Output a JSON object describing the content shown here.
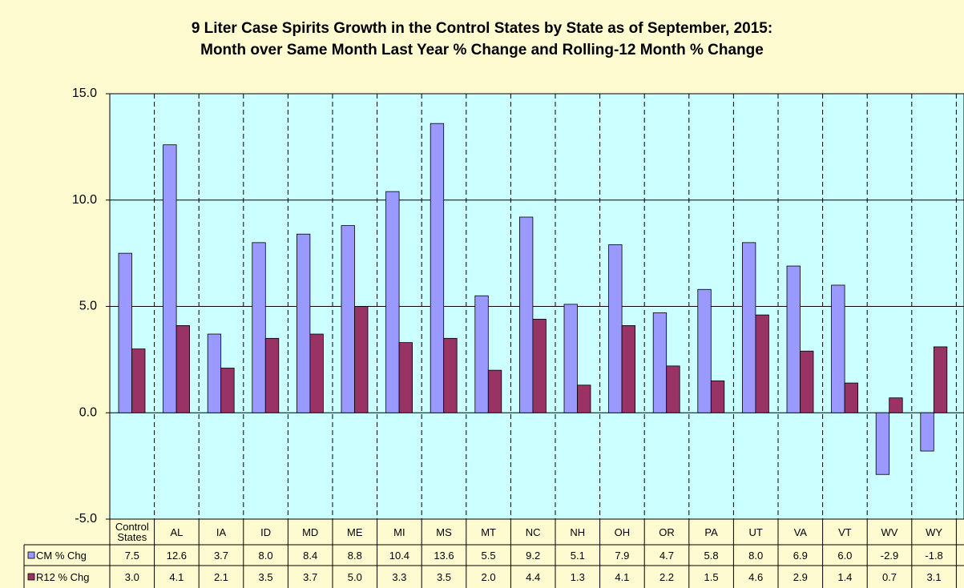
{
  "chart_data": {
    "type": "bar",
    "title": "9 Liter Case Spirits Growth in the Control States by State as of September, 2015:",
    "subtitle": "Month over Same Month Last Year % Change and Rolling-12 Month % Change",
    "categories": [
      "Control States",
      "AL",
      "IA",
      "ID",
      "MD",
      "ME",
      "MI",
      "MS",
      "MT",
      "NC",
      "NH",
      "OH",
      "OR",
      "PA",
      "UT",
      "VA",
      "VT",
      "WV",
      "WY"
    ],
    "series": [
      {
        "name": "CM % Chg",
        "color": "#9999ff",
        "values": [
          7.5,
          12.6,
          3.7,
          8.0,
          8.4,
          8.8,
          10.4,
          13.6,
          5.5,
          9.2,
          5.1,
          7.9,
          4.7,
          5.8,
          8.0,
          6.9,
          6.0,
          -2.9,
          -1.8
        ],
        "value_labels": [
          "7.5",
          "12.6",
          "3.7",
          "8.0",
          "8.4",
          "8.8",
          "10.4",
          "13.6",
          "5.5",
          "9.2",
          "5.1",
          "7.9",
          "4.7",
          "5.8",
          "8.0",
          "6.9",
          "6.0",
          "-2.9",
          "-1.8"
        ]
      },
      {
        "name": "R12 % Chg",
        "color": "#993366",
        "values": [
          3.0,
          4.1,
          2.1,
          3.5,
          3.7,
          5.0,
          3.3,
          3.5,
          2.0,
          4.4,
          1.3,
          4.1,
          2.2,
          1.5,
          4.6,
          2.9,
          1.4,
          0.7,
          3.1
        ],
        "value_labels": [
          "3.0",
          "4.1",
          "2.1",
          "3.5",
          "3.7",
          "5.0",
          "3.3",
          "3.5",
          "2.0",
          "4.4",
          "1.3",
          "4.1",
          "2.2",
          "1.5",
          "4.6",
          "2.9",
          "1.4",
          "0.7",
          "3.1"
        ]
      }
    ],
    "ylim": [
      -5,
      15
    ],
    "yticks": [
      {
        "value": -5,
        "label": "-5.0"
      },
      {
        "value": 0,
        "label": "0.0"
      },
      {
        "value": 5,
        "label": "5.0"
      },
      {
        "value": 10,
        "label": "10.0"
      },
      {
        "value": 15,
        "label": "15.0"
      }
    ],
    "grid": true
  }
}
